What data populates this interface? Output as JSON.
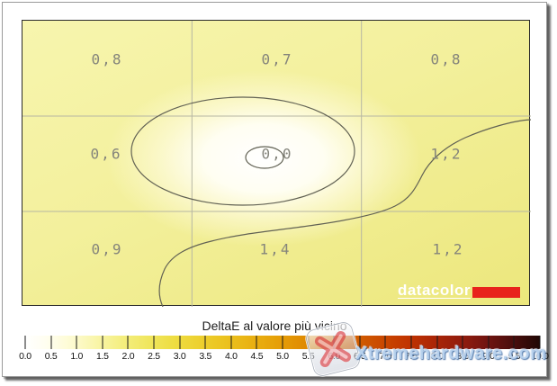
{
  "caption": "DeltaE al valore più vicino",
  "chart_data": {
    "type": "heatmap",
    "title": "DeltaE al valore più vicino",
    "rows": [
      "top",
      "middle",
      "bottom"
    ],
    "columns": [
      "left",
      "center",
      "right"
    ],
    "values": [
      [
        0.8,
        0.7,
        0.8
      ],
      [
        0.6,
        0.0,
        1.2
      ],
      [
        0.9,
        1.4,
        1.2
      ]
    ],
    "value_format": "decimal-comma",
    "contours": "closed contour around best (0,0) center region; second contour separating higher DeltaE right/bottom region",
    "legend_position": "bottom",
    "colorbar": {
      "min": 0.0,
      "max": 10.0,
      "step": 0.5,
      "tick_labels": [
        "0.0",
        "0.5",
        "1.0",
        "1.5",
        "2.0",
        "2.5",
        "3.0",
        "3.5",
        "4.0",
        "4.5",
        "5.0",
        "5.5",
        "6.0",
        "6.5",
        "7.0",
        "7.5",
        "8.0",
        "8.5",
        "9.0",
        "9.5",
        "10.0"
      ],
      "gradient_stops": [
        "#ffffff 0%",
        "#fffef0 4%",
        "#fdfbd2 9%",
        "#f9f5a8 14%",
        "#f4ee7e 19%",
        "#f0e65e 24%",
        "#eedd42 29%",
        "#edd02e 34%",
        "#ebc21e 39%",
        "#e9b112 44%",
        "#e6a008 49%",
        "#e08c02 54%",
        "#da7600 59%",
        "#d25f00 64%",
        "#ca4a00 69%",
        "#c23500 74%",
        "#ad2707 79%",
        "#911c0e 85%",
        "#6f1410 90%",
        "#480d0c 95%",
        "#200805 100%"
      ]
    }
  },
  "cells": [
    {
      "row": 1,
      "col": 1,
      "label": "0,8",
      "value": 0.8
    },
    {
      "row": 1,
      "col": 2,
      "label": "0,7",
      "value": 0.7
    },
    {
      "row": 1,
      "col": 3,
      "label": "0,8",
      "value": 0.8
    },
    {
      "row": 2,
      "col": 1,
      "label": "0,6",
      "value": 0.6
    },
    {
      "row": 2,
      "col": 2,
      "label": "0,0",
      "value": 0.0
    },
    {
      "row": 2,
      "col": 3,
      "label": "1,2",
      "value": 1.2
    },
    {
      "row": 3,
      "col": 1,
      "label": "0,9",
      "value": 0.9
    },
    {
      "row": 3,
      "col": 2,
      "label": "1,4",
      "value": 1.4
    },
    {
      "row": 3,
      "col": 3,
      "label": "1,2",
      "value": 1.2
    }
  ],
  "branding": {
    "datacolor_text": "datacolor",
    "logo_bar_color": "#e8231c"
  },
  "watermark": {
    "text": "Xtremehardware.com"
  },
  "colors": {
    "value_text": "#84847b",
    "contour_line": "#626254",
    "grid_line": "#b6b6a3",
    "plot_corner_yellow": "#ece77c",
    "plot_center": "#ffffff",
    "panel_border": "#9a9a9a"
  }
}
